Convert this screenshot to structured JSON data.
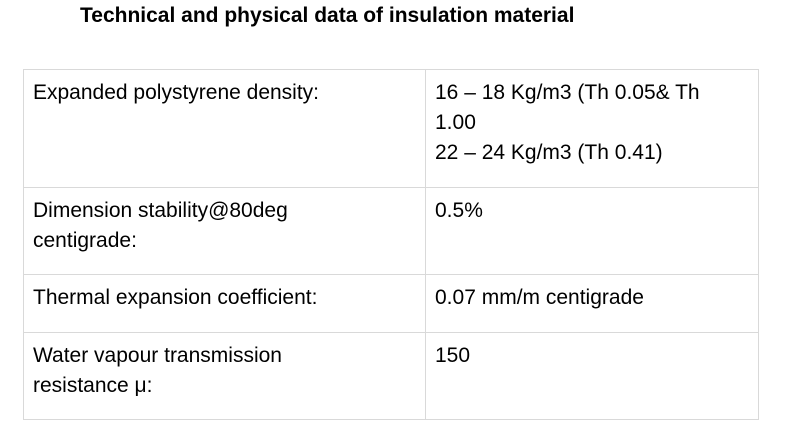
{
  "document": {
    "title": "Technical and physical data of insulation material"
  },
  "table": {
    "rows": [
      {
        "label": "Expanded polystyrene density:",
        "value_lines": [
          "16 – 18 Kg/m3 (Th 0.05& Th",
          "1.00",
          "22 – 24 Kg/m3 (Th 0.41)"
        ]
      },
      {
        "label_lines": [
          "Dimension stability@80deg",
          "centigrade:"
        ],
        "value": "0.5%"
      },
      {
        "label": "Thermal expansion coefficient:",
        "value": "0.07 mm/m centigrade"
      },
      {
        "label_lines": [
          "Water vapour transmission",
          "resistance μ:"
        ],
        "value": "150"
      }
    ]
  }
}
